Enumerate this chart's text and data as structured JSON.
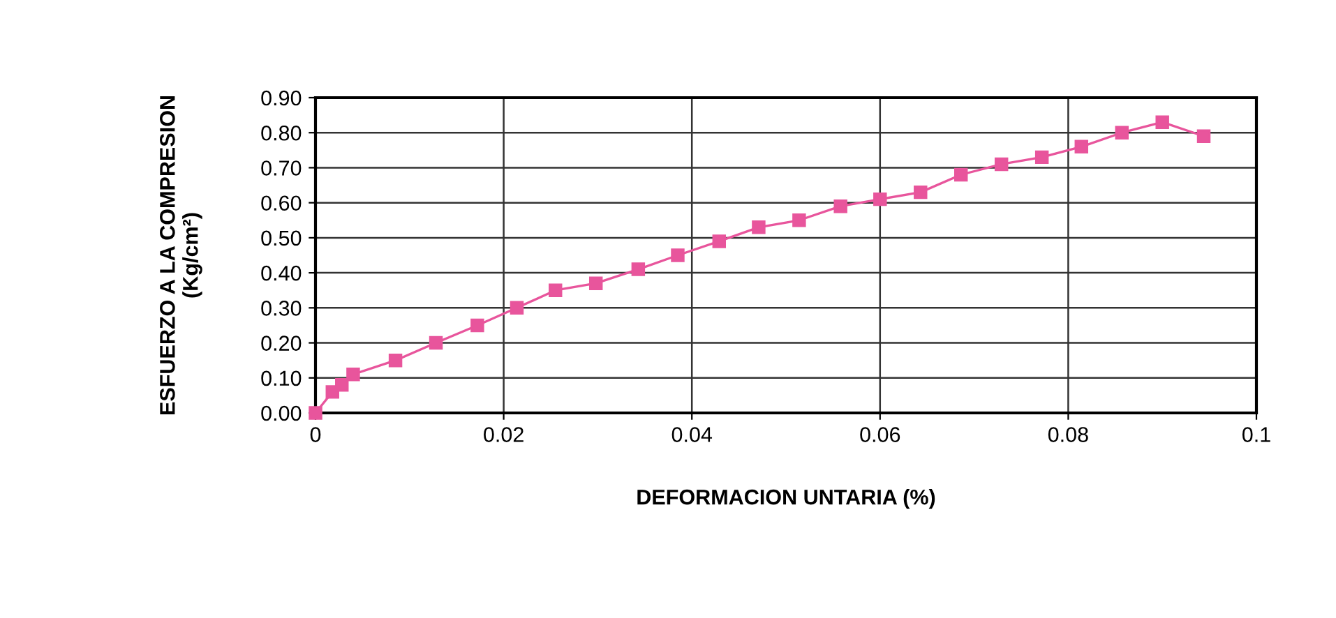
{
  "chart_data": {
    "type": "line",
    "xlabel": "DEFORMACION UNTARIA (%)",
    "ylabel": "ESFUERZO A LA COMPRESION\n(Kg/cm²)",
    "x": [
      0,
      0.0018,
      0.0028,
      0.004,
      0.0085,
      0.0128,
      0.0172,
      0.0214,
      0.0255,
      0.0298,
      0.0343,
      0.0385,
      0.0429,
      0.0471,
      0.0514,
      0.0558,
      0.06,
      0.0643,
      0.0686,
      0.0729,
      0.0772,
      0.0814,
      0.0857,
      0.09,
      0.0944
    ],
    "series": [
      {
        "color": "#e8559c",
        "values": [
          0,
          0.06,
          0.08,
          0.11,
          0.15,
          0.2,
          0.25,
          0.3,
          0.35,
          0.37,
          0.41,
          0.45,
          0.49,
          0.53,
          0.55,
          0.59,
          0.61,
          0.63,
          0.68,
          0.71,
          0.73,
          0.76,
          0.8,
          0.83,
          0.79
        ]
      }
    ],
    "xlim": [
      0,
      0.1
    ],
    "xticks": [
      0,
      0.02,
      0.04,
      0.06,
      0.08,
      0.1
    ],
    "ylim": [
      0,
      0.9
    ],
    "yticks": [
      {
        "value": 0,
        "label": "0.00"
      },
      {
        "value": 0.1,
        "label": "0.10"
      },
      {
        "value": 0.2,
        "label": "0.20"
      },
      {
        "value": 0.3,
        "label": "0.30"
      },
      {
        "value": 0.4,
        "label": "0.40"
      },
      {
        "value": 0.5,
        "label": "0.50"
      },
      {
        "value": 0.6,
        "label": "0.60"
      },
      {
        "value": 0.7,
        "label": "0.70"
      },
      {
        "value": 0.8,
        "label": "0.80"
      },
      {
        "value": 0.9,
        "label": "0.90"
      }
    ],
    "grid": true,
    "marker": "square",
    "line_style": "solid"
  }
}
